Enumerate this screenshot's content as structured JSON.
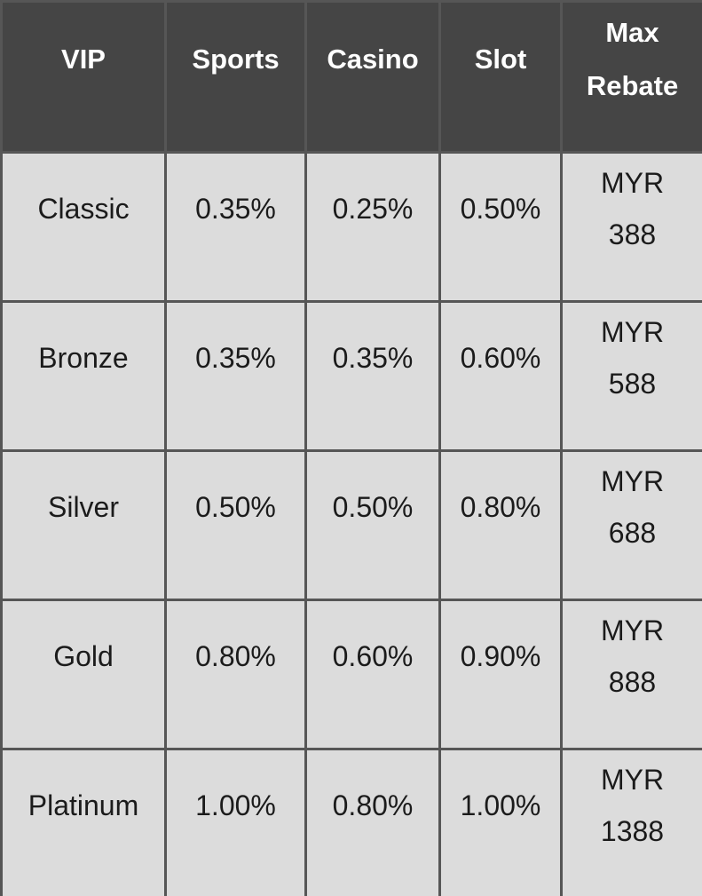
{
  "table": {
    "headers": [
      "VIP",
      "Sports",
      "Casino",
      "Slot",
      "Max Rebate"
    ],
    "rows": [
      {
        "vip": "Classic",
        "sports": "0.35%",
        "casino": "0.25%",
        "slot": "0.50%",
        "max_rebate_currency": "MYR",
        "max_rebate_amount": "388"
      },
      {
        "vip": "Bronze",
        "sports": "0.35%",
        "casino": "0.35%",
        "slot": "0.60%",
        "max_rebate_currency": "MYR",
        "max_rebate_amount": "588"
      },
      {
        "vip": "Silver",
        "sports": "0.50%",
        "casino": "0.50%",
        "slot": "0.80%",
        "max_rebate_currency": "MYR",
        "max_rebate_amount": "688"
      },
      {
        "vip": "Gold",
        "sports": "0.80%",
        "casino": "0.60%",
        "slot": "0.90%",
        "max_rebate_currency": "MYR",
        "max_rebate_amount": "888"
      },
      {
        "vip": "Platinum",
        "sports": "1.00%",
        "casino": "0.80%",
        "slot": "1.00%",
        "max_rebate_currency": "MYR",
        "max_rebate_amount": "1388"
      }
    ]
  },
  "colors": {
    "header_background": "#454545",
    "header_text": "#ffffff",
    "row_background": "#dcdcdc",
    "row_text": "#1b1b1b",
    "border": "#565656"
  },
  "chart_data": {
    "type": "table",
    "columns": [
      "VIP",
      "Sports",
      "Casino",
      "Slot",
      "Max Rebate"
    ],
    "rows": [
      [
        "Classic",
        "0.35%",
        "0.25%",
        "0.50%",
        "MYR 388"
      ],
      [
        "Bronze",
        "0.35%",
        "0.35%",
        "0.60%",
        "MYR 588"
      ],
      [
        "Silver",
        "0.50%",
        "0.50%",
        "0.80%",
        "MYR 688"
      ],
      [
        "Gold",
        "0.80%",
        "0.60%",
        "0.90%",
        "MYR 888"
      ],
      [
        "Platinum",
        "1.00%",
        "0.80%",
        "1.00%",
        "MYR 1388"
      ]
    ]
  }
}
